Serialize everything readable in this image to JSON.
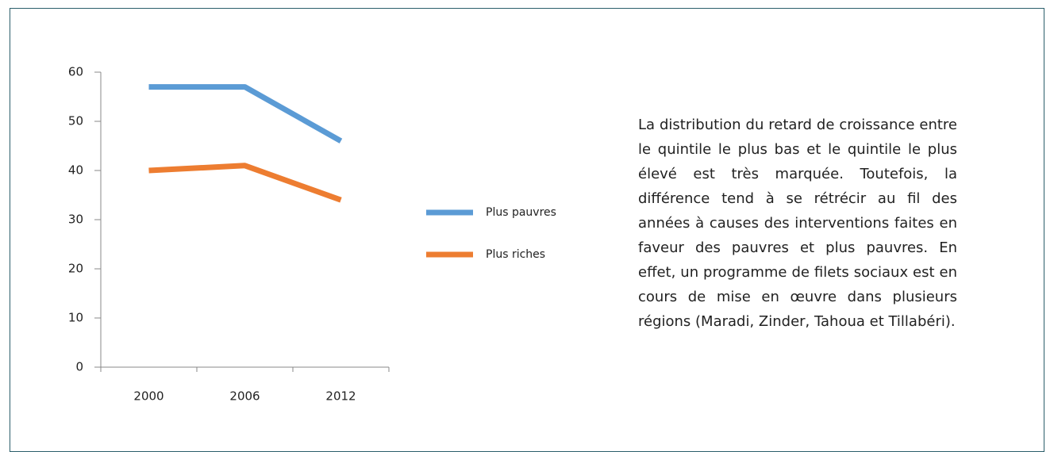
{
  "chart_data": {
    "type": "line",
    "categories": [
      "2000",
      "2006",
      "2012"
    ],
    "series": [
      {
        "name": "Plus pauvres",
        "color": "#5b9bd5",
        "values": [
          57,
          57,
          46
        ]
      },
      {
        "name": "Plus riches",
        "color": "#ed7d31",
        "values": [
          40,
          41,
          34
        ]
      }
    ],
    "ylim": [
      0,
      60
    ],
    "yticks": [
      0,
      10,
      20,
      30,
      40,
      50,
      60
    ],
    "grid": false,
    "legend": "right"
  },
  "paragraph": "La distribution du retard de croissance entre le quintile le plus bas et le quintile le plus élevé est très marquée. Toutefois, la différence tend à se rétrécir au fil des années à causes des interventions faites en faveur des pauvres et plus pauvres. En effet, un programme de filets sociaux est en cours de mise en œuvre dans plusieurs régions (Maradi, Zinder, Tahoua et Tillabéri)."
}
